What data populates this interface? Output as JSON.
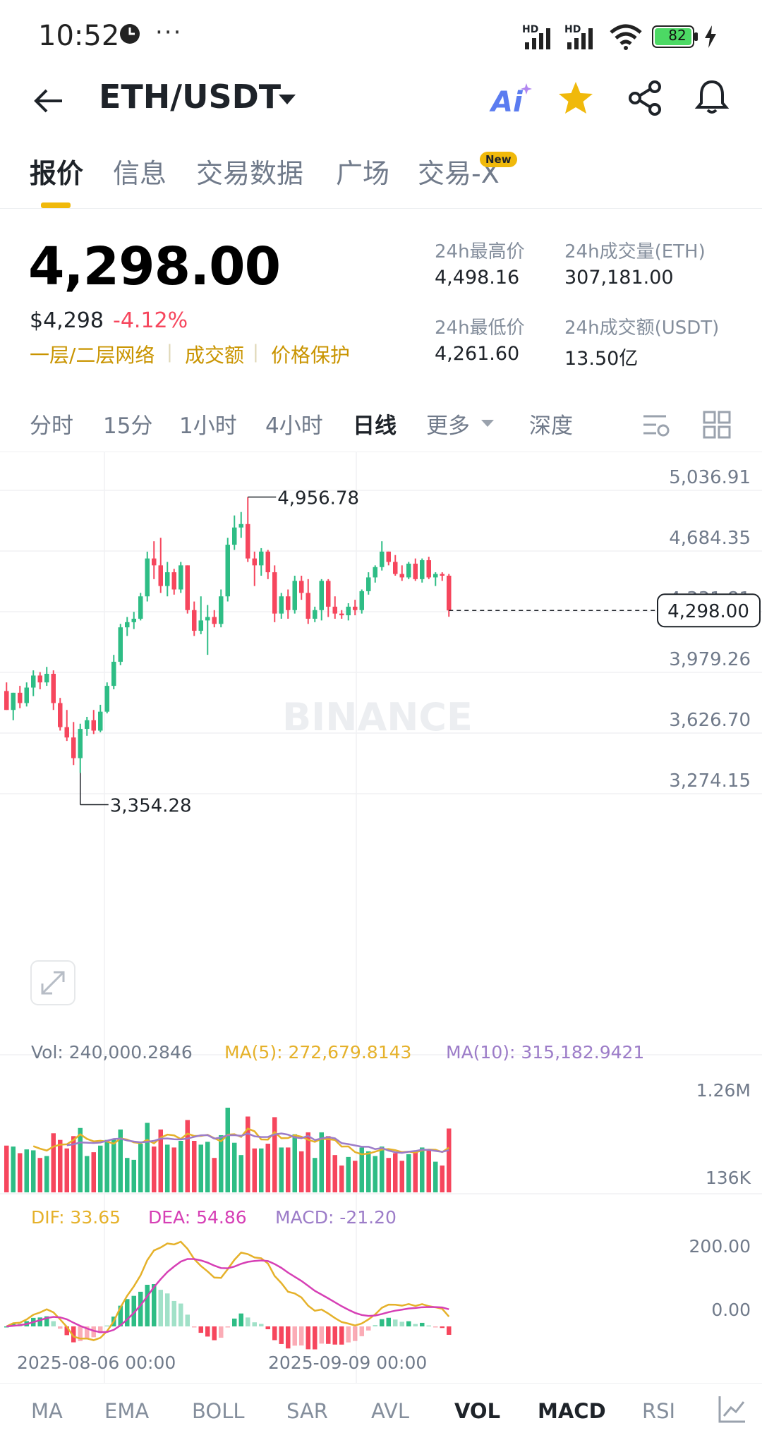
{
  "status_bar": {
    "time": "10:52",
    "dots": "···",
    "battery": "82",
    "hd1": "HD",
    "hd2": "HD"
  },
  "header": {
    "pair": "ETH/USDT",
    "ai_label": "Ai"
  },
  "tabs": [
    {
      "label": "报价",
      "active": true
    },
    {
      "label": "信息",
      "active": false
    },
    {
      "label": "交易数据",
      "active": false
    },
    {
      "label": "广场",
      "active": false
    },
    {
      "label": "交易-X",
      "active": false,
      "badge": "New"
    }
  ],
  "ticker": {
    "price": "4,298.00",
    "usd_price": "$4,298",
    "change": "-4.12%",
    "links": [
      "一层/二层网络",
      "成交额",
      "价格保护"
    ],
    "stats": [
      {
        "label": "24h最高价",
        "value": "4,498.16"
      },
      {
        "label": "24h成交量(ETH)",
        "value": "307,181.00"
      },
      {
        "label": "24h最低价",
        "value": "4,261.60"
      },
      {
        "label": "24h成交额(USDT)",
        "value": "13.50亿"
      }
    ]
  },
  "intervals": [
    {
      "label": "分时",
      "active": false
    },
    {
      "label": "15分",
      "active": false
    },
    {
      "label": "1小时",
      "active": false
    },
    {
      "label": "4小时",
      "active": false
    },
    {
      "label": "日线",
      "active": true
    },
    {
      "label": "更多",
      "active": false
    },
    {
      "label": "深度",
      "active": false
    }
  ],
  "colors": {
    "up": "#2ebd85",
    "down": "#f6465d",
    "accent": "#f0b90b",
    "ma5": "#e5b12a",
    "ma10": "#9c7cc8",
    "dea": "#d63fb5"
  },
  "chart_data": {
    "type": "candlestick",
    "price_axis_ticks": [
      "5,036.91",
      "4,684.35",
      "4,331.81",
      "3,979.26",
      "3,626.70",
      "3,274.15"
    ],
    "ylim": [
      3274.15,
      5036.91
    ],
    "current_price_label": "4,298.00",
    "high_marker": "4,956.78",
    "low_marker": "3,354.28",
    "watermark": "BINANCE",
    "candles": [
      [
        3830,
        3880,
        3720,
        3720
      ],
      [
        3720,
        3820,
        3660,
        3820
      ],
      [
        3820,
        3860,
        3730,
        3760
      ],
      [
        3760,
        3880,
        3740,
        3850
      ],
      [
        3850,
        3950,
        3800,
        3920
      ],
      [
        3920,
        3940,
        3840,
        3880
      ],
      [
        3880,
        3970,
        3860,
        3930
      ],
      [
        3930,
        3950,
        3720,
        3760
      ],
      [
        3760,
        3790,
        3600,
        3620
      ],
      [
        3620,
        3720,
        3540,
        3560
      ],
      [
        3560,
        3650,
        3400,
        3440
      ],
      [
        3440,
        3640,
        3354,
        3610
      ],
      [
        3610,
        3680,
        3570,
        3660
      ],
      [
        3660,
        3720,
        3580,
        3600
      ],
      [
        3600,
        3750,
        3590,
        3710
      ],
      [
        3710,
        3880,
        3700,
        3860
      ],
      [
        3860,
        4040,
        3840,
        4000
      ],
      [
        4000,
        4220,
        3980,
        4200
      ],
      [
        4200,
        4260,
        4150,
        4230
      ],
      [
        4230,
        4290,
        4190,
        4250
      ],
      [
        4250,
        4400,
        4240,
        4380
      ],
      [
        4380,
        4640,
        4350,
        4600
      ],
      [
        4600,
        4700,
        4480,
        4560
      ],
      [
        4560,
        4720,
        4400,
        4440
      ],
      [
        4440,
        4580,
        4380,
        4520
      ],
      [
        4520,
        4540,
        4390,
        4420
      ],
      [
        4420,
        4580,
        4400,
        4560
      ],
      [
        4560,
        4560,
        4280,
        4300
      ],
      [
        4300,
        4350,
        4150,
        4180
      ],
      [
        4180,
        4380,
        4160,
        4240
      ],
      [
        4240,
        4330,
        4040,
        4260
      ],
      [
        4260,
        4300,
        4200,
        4220
      ],
      [
        4220,
        4420,
        4200,
        4380
      ],
      [
        4380,
        4720,
        4350,
        4680
      ],
      [
        4680,
        4850,
        4650,
        4780
      ],
      [
        4780,
        4870,
        4720,
        4800
      ],
      [
        4800,
        4956.78,
        4580,
        4600
      ],
      [
        4600,
        4640,
        4440,
        4560
      ],
      [
        4560,
        4660,
        4500,
        4640
      ],
      [
        4640,
        4650,
        4480,
        4520
      ],
      [
        4520,
        4560,
        4230,
        4280
      ],
      [
        4280,
        4400,
        4250,
        4380
      ],
      [
        4380,
        4420,
        4250,
        4300
      ],
      [
        4300,
        4500,
        4280,
        4470
      ],
      [
        4470,
        4500,
        4360,
        4400
      ],
      [
        4400,
        4480,
        4220,
        4250
      ],
      [
        4250,
        4320,
        4230,
        4300
      ],
      [
        4300,
        4480,
        4240,
        4470
      ],
      [
        4470,
        4480,
        4260,
        4320
      ],
      [
        4320,
        4380,
        4250,
        4280
      ],
      [
        4280,
        4300,
        4250,
        4270
      ],
      [
        4270,
        4340,
        4240,
        4320
      ],
      [
        4320,
        4360,
        4270,
        4300
      ],
      [
        4300,
        4420,
        4280,
        4410
      ],
      [
        4410,
        4520,
        4390,
        4490
      ],
      [
        4490,
        4560,
        4460,
        4550
      ],
      [
        4550,
        4700,
        4530,
        4640
      ],
      [
        4640,
        4640,
        4560,
        4580
      ],
      [
        4580,
        4620,
        4500,
        4510
      ],
      [
        4510,
        4560,
        4470,
        4490
      ],
      [
        4490,
        4580,
        4480,
        4570
      ],
      [
        4570,
        4600,
        4470,
        4480
      ],
      [
        4480,
        4600,
        4460,
        4590
      ],
      [
        4590,
        4610,
        4480,
        4490
      ],
      [
        4490,
        4520,
        4440,
        4510
      ],
      [
        4510,
        4520,
        4470,
        4500
      ],
      [
        4500,
        4510,
        4261.6,
        4298
      ]
    ],
    "volume": {
      "label": "Vol: 240,000.2846",
      "ma5_label": "MA(5): 272,679.8143",
      "ma10_label": "MA(10): 315,182.9421",
      "axis_ticks": [
        "1.26M",
        "136K"
      ]
    },
    "macd": {
      "dif_label": "DIF: 33.65",
      "dea_label": "DEA: 54.86",
      "macd_label": "MACD: -21.20",
      "axis_ticks": [
        "200.00",
        "0.00"
      ]
    },
    "x_labels": [
      "2025-08-06 00:00",
      "2025-09-09 00:00"
    ]
  },
  "bottom_nav": [
    {
      "label": "MA",
      "active": false
    },
    {
      "label": "EMA",
      "active": false
    },
    {
      "label": "BOLL",
      "active": false
    },
    {
      "label": "SAR",
      "active": false
    },
    {
      "label": "AVL",
      "active": false
    },
    {
      "label": "VOL",
      "active": true
    },
    {
      "label": "MACD",
      "active": true
    },
    {
      "label": "RSI",
      "active": false
    }
  ]
}
